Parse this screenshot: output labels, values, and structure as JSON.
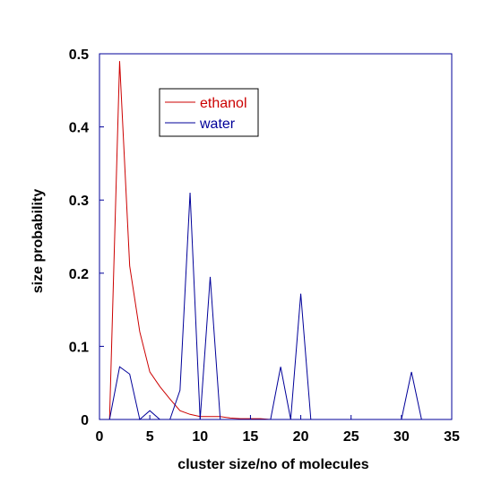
{
  "chart_data": {
    "type": "line",
    "xlabel": "cluster size/no of molecules",
    "ylabel": "size probability",
    "xlim": [
      0,
      35
    ],
    "ylim": [
      0,
      0.5
    ],
    "xticks": [
      "0",
      "5",
      "10",
      "15",
      "20",
      "25",
      "30",
      "35"
    ],
    "yticks": [
      "0",
      "0.1",
      "0.2",
      "0.3",
      "0.4",
      "0.5"
    ],
    "grid": false,
    "legend_position": "top-left",
    "series": [
      {
        "name": "ethanol",
        "color": "#cc0000",
        "x": [
          1,
          2,
          3,
          4,
          5,
          6,
          7,
          8,
          9,
          10,
          11,
          12,
          13,
          14,
          15,
          16,
          17,
          18,
          19,
          20
        ],
        "y": [
          0,
          0.49,
          0.21,
          0.12,
          0.065,
          0.045,
          0.028,
          0.012,
          0.007,
          0.004,
          0.004,
          0.004,
          0.002,
          0.001,
          0.001,
          0.001,
          0,
          0,
          0,
          0
        ]
      },
      {
        "name": "water",
        "color": "#000099",
        "x": [
          1,
          2,
          3,
          4,
          5,
          6,
          7,
          8,
          9,
          10,
          11,
          12,
          13,
          14,
          15,
          16,
          17,
          18,
          19,
          20,
          21,
          22,
          23,
          24,
          25,
          26,
          27,
          28,
          29,
          30,
          31,
          32
        ],
        "y": [
          0,
          0.072,
          0.062,
          0,
          0.012,
          0,
          0,
          0.04,
          0.31,
          0,
          0.195,
          0,
          0,
          0,
          0,
          0,
          0,
          0.072,
          0,
          0.172,
          0,
          0,
          0,
          0,
          0,
          0,
          0,
          0,
          0,
          0,
          0.065,
          0
        ]
      }
    ]
  }
}
